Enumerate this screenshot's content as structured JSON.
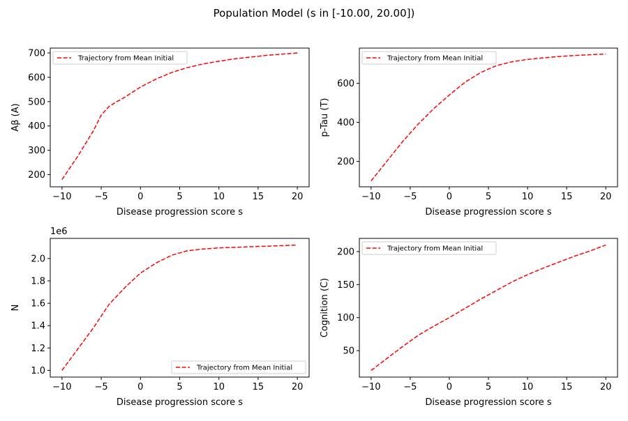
{
  "figure": {
    "title": "Population Model (s in [-10.00, 20.00])"
  },
  "chart_data": [
    {
      "type": "line",
      "xlabel": "Disease progression score  s",
      "ylabel": "Aβ (A)",
      "xlim": [
        -11.5,
        21.5
      ],
      "ylim": [
        150,
        720
      ],
      "xticks": [
        -10,
        -5,
        0,
        5,
        10,
        15,
        20
      ],
      "yticks": [
        200,
        300,
        400,
        500,
        600,
        700
      ],
      "grid": false,
      "legend_position": "top-left",
      "series": [
        {
          "name": "Trajectory from Mean Initial",
          "color": "#ff0000",
          "style": "dashed",
          "x": [
            -10,
            -8,
            -6,
            -5,
            -4,
            -3,
            -2,
            0,
            2,
            4,
            6,
            8,
            10,
            12,
            14,
            16,
            18,
            20
          ],
          "y": [
            180,
            275,
            380,
            445,
            480,
            500,
            518,
            560,
            593,
            620,
            640,
            655,
            666,
            676,
            683,
            690,
            695,
            700
          ]
        }
      ]
    },
    {
      "type": "line",
      "xlabel": "Disease progression score  s",
      "ylabel": "p-Tau (T)",
      "xlim": [
        -11.5,
        21.5
      ],
      "ylim": [
        70,
        780
      ],
      "xticks": [
        -10,
        -5,
        0,
        5,
        10,
        15,
        20
      ],
      "yticks": [
        200,
        400,
        600
      ],
      "grid": false,
      "legend_position": "top-left",
      "series": [
        {
          "name": "Trajectory from Mean Initial",
          "color": "#ff0000",
          "style": "dashed",
          "x": [
            -10,
            -8,
            -6,
            -4,
            -2,
            0,
            2,
            4,
            6,
            8,
            10,
            12,
            14,
            16,
            18,
            20
          ],
          "y": [
            100,
            200,
            300,
            390,
            470,
            540,
            605,
            655,
            690,
            710,
            722,
            730,
            737,
            742,
            746,
            750
          ]
        }
      ]
    },
    {
      "type": "line",
      "xlabel": "Disease progression score  s",
      "ylabel": "N",
      "offset_label": "1e6",
      "xlim": [
        -11.5,
        21.5
      ],
      "ylim": [
        0.94,
        2.18
      ],
      "xticks": [
        -10,
        -5,
        0,
        5,
        10,
        15,
        20
      ],
      "yticks": [
        1.0,
        1.2,
        1.4,
        1.6,
        1.8,
        2.0
      ],
      "grid": false,
      "legend_position": "bottom-right",
      "series": [
        {
          "name": "Trajectory from Mean Initial",
          "color": "#ff0000",
          "style": "dashed",
          "x": [
            -10,
            -8,
            -6,
            -4,
            -2,
            0,
            2,
            4,
            6,
            8,
            10,
            12,
            14,
            16,
            18,
            20
          ],
          "y": [
            1.0,
            1.19,
            1.38,
            1.59,
            1.74,
            1.87,
            1.96,
            2.03,
            2.07,
            2.085,
            2.095,
            2.1,
            2.105,
            2.11,
            2.115,
            2.12
          ]
        }
      ]
    },
    {
      "type": "line",
      "xlabel": "Disease progression score  s",
      "ylabel": "Cognition (C)",
      "xlim": [
        -11.5,
        21.5
      ],
      "ylim": [
        10,
        220
      ],
      "xticks": [
        -10,
        -5,
        0,
        5,
        10,
        15,
        20
      ],
      "yticks": [
        50,
        100,
        150,
        200
      ],
      "grid": false,
      "legend_position": "top-left",
      "series": [
        {
          "name": "Trajectory from Mean Initial",
          "color": "#ff0000",
          "style": "dashed",
          "x": [
            -10,
            -8,
            -6,
            -4,
            -2,
            0,
            2,
            4,
            6,
            8,
            10,
            12,
            14,
            16,
            18,
            20
          ],
          "y": [
            20,
            38,
            56,
            73,
            87,
            100,
            114,
            128,
            141,
            154,
            165,
            175,
            184,
            193,
            201,
            210
          ]
        }
      ]
    }
  ]
}
